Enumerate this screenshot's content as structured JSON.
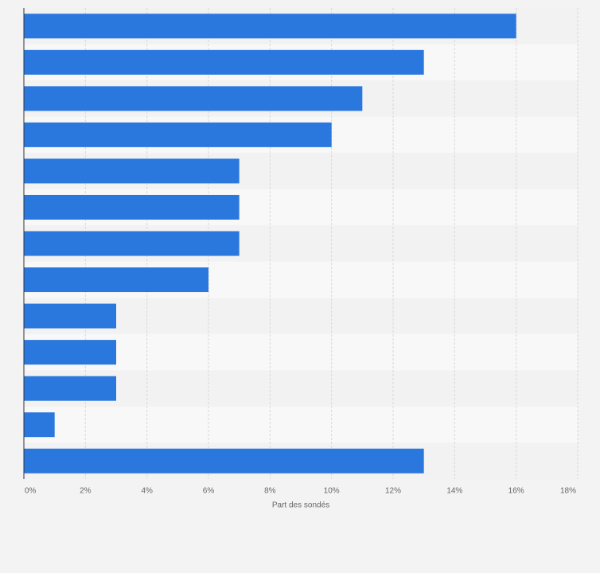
{
  "chart_data": {
    "type": "bar",
    "orientation": "horizontal",
    "categories": [
      null,
      null,
      null,
      null,
      null,
      null,
      null,
      null,
      null,
      null,
      null,
      null,
      null
    ],
    "values": [
      16,
      13,
      11,
      10,
      7,
      7,
      7,
      6,
      3,
      3,
      3,
      1,
      13
    ],
    "color": "#2a77dd",
    "x_label": "Part des sondés",
    "xlim": [
      0,
      18
    ],
    "xticks": [
      {
        "value": 0,
        "label": "0%"
      },
      {
        "value": 2,
        "label": "2%"
      },
      {
        "value": 4,
        "label": "4%"
      },
      {
        "value": 6,
        "label": "6%"
      },
      {
        "value": 8,
        "label": "8%"
      },
      {
        "value": 10,
        "label": "10%"
      },
      {
        "value": 12,
        "label": "12%"
      },
      {
        "value": 14,
        "label": "14%"
      },
      {
        "value": 16,
        "label": "16%"
      },
      {
        "value": 18,
        "label": "18%"
      }
    ],
    "grid": true
  }
}
